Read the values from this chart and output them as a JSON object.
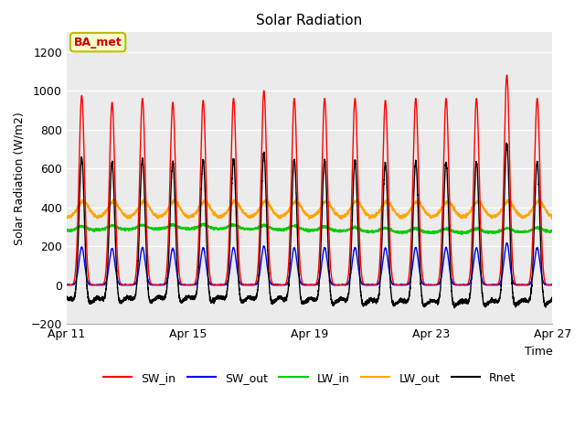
{
  "title": "Solar Radiation",
  "ylabel": "Solar Radiation (W/m2)",
  "xlabel": "Time",
  "ylim": [
    -200,
    1300
  ],
  "yticks": [
    -200,
    0,
    200,
    400,
    600,
    800,
    1000,
    1200
  ],
  "x_tick_labels": [
    "Apr 11",
    "Apr 15",
    "Apr 19",
    "Apr 23",
    "Apr 27"
  ],
  "x_tick_positions": [
    0,
    4,
    8,
    12,
    16
  ],
  "background_color": "#ffffff",
  "plot_bg_color": "#ebebeb",
  "grid_color": "#ffffff",
  "series": {
    "SW_in": {
      "color": "#ff0000",
      "lw": 1.0
    },
    "SW_out": {
      "color": "#0000ff",
      "lw": 1.0
    },
    "LW_in": {
      "color": "#00cc00",
      "lw": 1.0
    },
    "LW_out": {
      "color": "#ffa500",
      "lw": 1.0
    },
    "Rnet": {
      "color": "#000000",
      "lw": 1.0
    }
  },
  "annotation_text": "BA_met",
  "annotation_color": "#cc0000",
  "annotation_bg": "#ffffcc",
  "annotation_edge": "#bbbb00",
  "n_days": 17,
  "pts_per_day": 288
}
